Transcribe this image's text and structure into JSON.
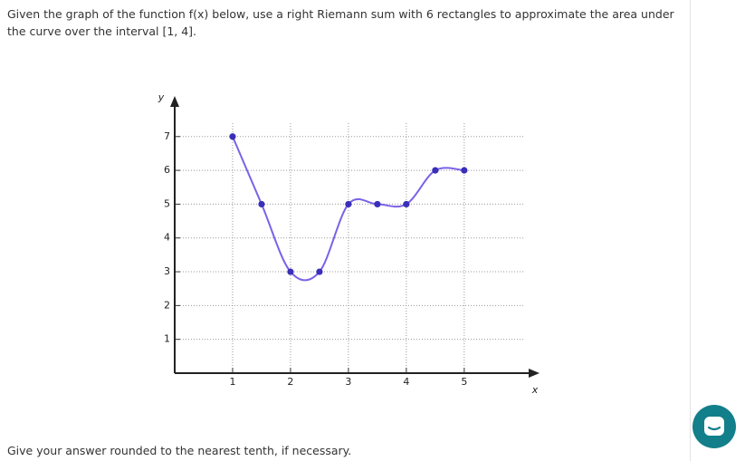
{
  "question": "Given the graph of the function f(x) below, use a right Riemann sum with 6 rectangles to approximate the area under the curve over the interval [1, 4].",
  "chart_data": {
    "type": "line",
    "x_label": "x",
    "y_label": "y",
    "x": [
      1,
      1.5,
      2,
      2.5,
      3,
      3.5,
      4,
      4.5,
      5
    ],
    "values": [
      7,
      5,
      3,
      3,
      5,
      5,
      5,
      6,
      6
    ],
    "color": "#7b61e8",
    "marker_color": "#3a2fb8",
    "xlim": [
      0,
      6.3
    ],
    "ylim": [
      0,
      8.2
    ],
    "xticks": [
      1,
      2,
      3,
      4,
      5
    ],
    "yticks": [
      1,
      2,
      3,
      4,
      5,
      6,
      7
    ],
    "grid": true
  },
  "footer": "Give your answer rounded to the nearest tenth, if necessary."
}
